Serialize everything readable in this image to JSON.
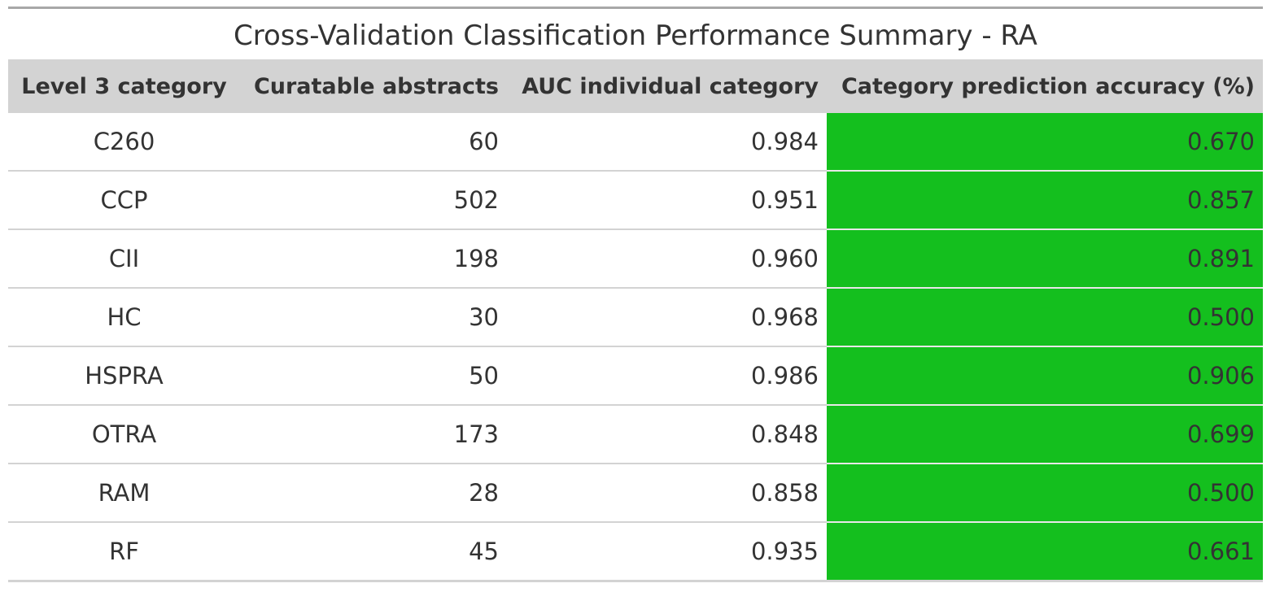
{
  "chart_data": {
    "type": "table",
    "title": "Cross-Validation Classification Performance Summary - RA",
    "columns": [
      "Level 3 category",
      "Curatable abstracts",
      "AUC individual category",
      "Category prediction accuracy (%)"
    ],
    "highlight_color": "#14bf1e",
    "rows": [
      {
        "category": "C260",
        "abstracts": "60",
        "auc": "0.984",
        "accuracy": "0.670"
      },
      {
        "category": "CCP",
        "abstracts": "502",
        "auc": "0.951",
        "accuracy": "0.857"
      },
      {
        "category": "CII",
        "abstracts": "198",
        "auc": "0.960",
        "accuracy": "0.891"
      },
      {
        "category": "HC",
        "abstracts": "30",
        "auc": "0.968",
        "accuracy": "0.500"
      },
      {
        "category": "HSPRA",
        "abstracts": "50",
        "auc": "0.986",
        "accuracy": "0.906"
      },
      {
        "category": "OTRA",
        "abstracts": "173",
        "auc": "0.848",
        "accuracy": "0.699"
      },
      {
        "category": "RAM",
        "abstracts": "28",
        "auc": "0.858",
        "accuracy": "0.500"
      },
      {
        "category": "RF",
        "abstracts": "45",
        "auc": "0.935",
        "accuracy": "0.661"
      }
    ]
  }
}
